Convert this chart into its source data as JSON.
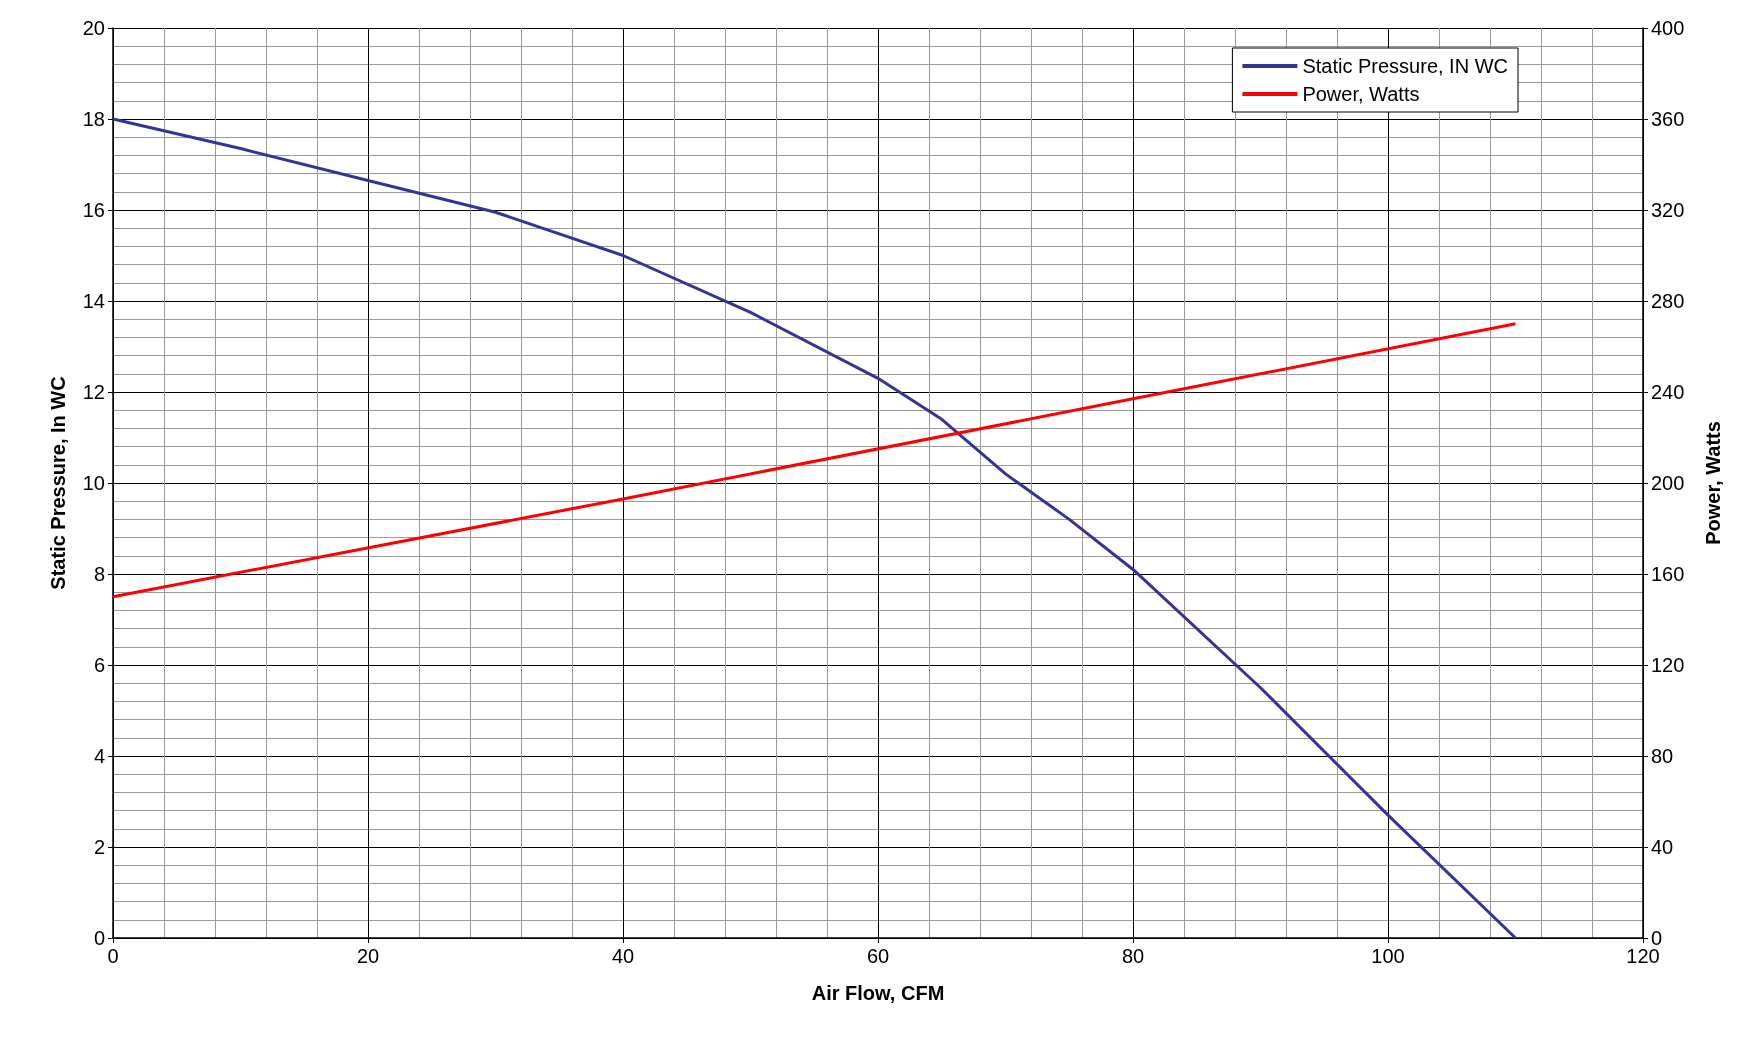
{
  "chart_data": {
    "type": "line",
    "xlabel": "Air Flow, CFM",
    "ylabel": "Static Pressure, In WC",
    "y2label": "Power, Watts",
    "xlim": [
      0,
      120
    ],
    "xticks": [
      0,
      20,
      40,
      60,
      80,
      100,
      120
    ],
    "ylim": [
      0,
      20
    ],
    "yticks": [
      0,
      2,
      4,
      6,
      8,
      10,
      12,
      14,
      16,
      18,
      20
    ],
    "y2lim": [
      0,
      400
    ],
    "y2ticks": [
      0,
      40,
      80,
      120,
      160,
      200,
      240,
      280,
      320,
      360,
      400
    ],
    "grid": true,
    "legend": "top right",
    "marker": "none",
    "line_style": "solid",
    "series": [
      {
        "name": "Static Pressure, IN WC",
        "color": "#333399",
        "x": [
          0,
          10,
          20,
          30,
          40,
          50,
          60,
          65,
          70,
          75,
          80,
          90,
          100,
          110
        ],
        "values": [
          18,
          17.35,
          16.65,
          15.95,
          15.0,
          13.75,
          12.3,
          11.4,
          10.2,
          9.2,
          8.1,
          5.5,
          2.7,
          0
        ]
      },
      {
        "name": "Power, Watts",
        "color": "#ff0000",
        "axis": "y2",
        "x": [
          0,
          40,
          80,
          110
        ],
        "values": [
          150,
          193,
          237,
          270
        ]
      }
    ]
  }
}
